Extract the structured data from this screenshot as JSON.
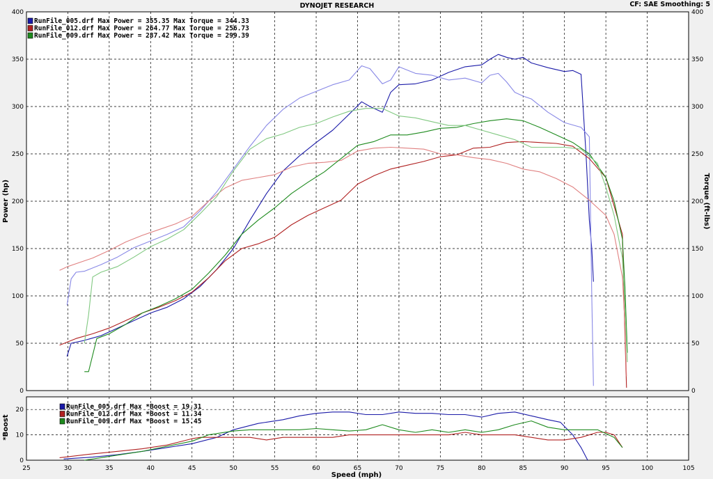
{
  "header": {
    "title": "DYNOJET RESEARCH",
    "settings": "CF: SAE  Smoothing: 5"
  },
  "chart_data": [
    {
      "type": "line",
      "title": "DYNOJET RESEARCH",
      "xlabel": "Speed (mph)",
      "ylabel": "Power (hp)",
      "y2label": "Torque (ft-lbs)",
      "xlim": [
        25,
        105
      ],
      "ylim": [
        0,
        400
      ],
      "y2lim": [
        0,
        400
      ],
      "xticks": [
        "25",
        "30",
        "35",
        "40",
        "45",
        "50",
        "55",
        "60",
        "65",
        "70",
        "75",
        "80",
        "85",
        "90",
        "95",
        "100",
        "105"
      ],
      "yticks": [
        "0",
        "50",
        "100",
        "150",
        "200",
        "250",
        "300",
        "350",
        "400"
      ],
      "grid": true,
      "legend_position": "top-left",
      "legend": [
        "RunFile_005.drf Max Power = 355.35    Max Torque = 344.33",
        "RunFile_012.drf Max Power = 264.77    Max Torque = 256.73",
        "RunFile_009.drf Max Power = 287.42    Max Torque = 299.39"
      ],
      "series": [
        {
          "name": "RunFile_005.drf",
          "measure": "power",
          "color": "#1a1aa8",
          "x": [
            29.9,
            30.4,
            32,
            34,
            36,
            38,
            40,
            42,
            44,
            46,
            48,
            50,
            52,
            54,
            56,
            58,
            60,
            62,
            64,
            65.5,
            66.5,
            68,
            69,
            70,
            72,
            74,
            76,
            78,
            80,
            81,
            82,
            83,
            84,
            85,
            86,
            88,
            90,
            91,
            92,
            92.6,
            93,
            93.3,
            93.5
          ],
          "y": [
            36,
            50,
            53,
            58,
            66,
            74,
            82,
            88,
            97,
            110,
            128,
            150,
            180,
            208,
            232,
            248,
            262,
            275,
            292,
            305,
            300,
            294,
            315,
            323,
            324,
            328,
            336,
            342,
            344,
            350,
            355,
            352,
            350,
            352,
            346,
            341,
            337,
            338,
            334,
            250,
            180,
            150,
            115
          ]
        },
        {
          "name": "RunFile_005.drf",
          "measure": "torque",
          "color": "#8888e6",
          "x": [
            29.9,
            30.4,
            31,
            32,
            34,
            36,
            38,
            40,
            42,
            44,
            46,
            48,
            50,
            52,
            54,
            56,
            58,
            60,
            62,
            64,
            65.5,
            66.5,
            68,
            69,
            70,
            72,
            74,
            76,
            78,
            80,
            81,
            82,
            83,
            84,
            85,
            86,
            88,
            90,
            92,
            93,
            93.3,
            93.5
          ],
          "y": [
            90,
            118,
            125,
            126,
            133,
            141,
            151,
            158,
            165,
            173,
            190,
            210,
            234,
            258,
            280,
            297,
            309,
            316,
            323,
            328,
            343,
            340,
            324,
            328,
            342,
            335,
            333,
            328,
            330,
            325,
            333,
            335,
            326,
            315,
            311,
            308,
            294,
            283,
            278,
            268,
            100,
            5
          ]
        },
        {
          "name": "RunFile_012.drf",
          "measure": "power",
          "color": "#b02020",
          "x": [
            29,
            31,
            33,
            35,
            37,
            39,
            41,
            43,
            45,
            47,
            49,
            51,
            53,
            55,
            57,
            59,
            61,
            63,
            65,
            67,
            69,
            71,
            73,
            75,
            77,
            79,
            81,
            83,
            85,
            87,
            89,
            91,
            93,
            95,
            96,
            97,
            97.2,
            97.5
          ],
          "y": [
            48,
            55,
            60,
            66,
            74,
            82,
            88,
            95,
            104,
            119,
            137,
            150,
            155,
            162,
            175,
            185,
            193,
            201,
            218,
            227,
            234,
            238,
            242,
            247,
            249,
            256,
            257,
            262,
            263,
            262,
            261,
            258,
            245,
            225,
            195,
            165,
            90,
            3
          ]
        },
        {
          "name": "RunFile_012.drf",
          "measure": "torque",
          "color": "#e08080",
          "x": [
            29,
            30,
            33,
            35,
            37,
            39,
            41,
            43,
            45,
            47,
            49,
            51,
            53,
            55,
            57,
            59,
            61,
            63,
            65,
            67,
            69,
            71,
            73,
            75,
            77,
            79,
            81,
            83,
            85,
            87,
            89,
            91,
            93,
            95,
            96,
            97,
            97.3,
            97.5
          ],
          "y": [
            127,
            131,
            140,
            148,
            157,
            164,
            170,
            176,
            184,
            200,
            214,
            222,
            225,
            228,
            236,
            240,
            241,
            243,
            253,
            256,
            257,
            256,
            255,
            250,
            249,
            246,
            244,
            240,
            234,
            231,
            224,
            215,
            201,
            185,
            165,
            120,
            70,
            15
          ]
        },
        {
          "name": "RunFile_009.drf",
          "measure": "power",
          "color": "#1d8a1d",
          "x": [
            32,
            32.5,
            33.5,
            35,
            37,
            39,
            41,
            43,
            45,
            47,
            49,
            51,
            53,
            55,
            57,
            59,
            61,
            63,
            65,
            67,
            69,
            71,
            73,
            75,
            77,
            79,
            81,
            83,
            85,
            87,
            89,
            91,
            93,
            95,
            96,
            97,
            97.3,
            97.6
          ],
          "y": [
            20,
            20,
            55,
            60,
            70,
            82,
            89,
            97,
            107,
            124,
            143,
            165,
            180,
            193,
            208,
            220,
            231,
            245,
            259,
            263,
            270,
            270,
            273,
            277,
            278,
            282,
            285,
            287,
            285,
            278,
            270,
            262,
            250,
            225,
            200,
            160,
            110,
            40
          ]
        },
        {
          "name": "RunFile_009.drf",
          "measure": "torque",
          "color": "#80c880",
          "x": [
            32,
            32.5,
            33,
            34,
            36,
            38,
            40,
            42,
            44,
            46,
            48,
            50,
            52,
            54,
            56,
            58,
            60,
            62,
            64,
            66,
            68,
            70,
            72,
            74,
            76,
            78,
            80,
            82,
            84,
            86,
            88,
            90,
            92,
            94,
            95,
            96,
            97,
            97.3,
            97.6
          ],
          "y": [
            50,
            80,
            120,
            125,
            131,
            141,
            152,
            160,
            170,
            187,
            205,
            232,
            255,
            266,
            271,
            278,
            282,
            289,
            295,
            298,
            298,
            290,
            288,
            284,
            280,
            280,
            275,
            270,
            265,
            257,
            257,
            257,
            255,
            240,
            215,
            185,
            140,
            90,
            30
          ]
        }
      ]
    },
    {
      "type": "line",
      "xlabel": "Speed (mph)",
      "ylabel": "*Boost",
      "xlim": [
        25,
        105
      ],
      "ylim": [
        0,
        25
      ],
      "yticks": [
        "0",
        "10",
        "20"
      ],
      "grid": true,
      "legend_position": "top-left",
      "legend": [
        "RunFile_005.drf Max *Boost = 19.31",
        "RunFile_012.drf Max *Boost = 11.34",
        "RunFile_009.drf Max *Boost = 15.45"
      ],
      "series": [
        {
          "name": "RunFile_005.drf",
          "measure": "boost",
          "color": "#1a1aa8",
          "x": [
            29.5,
            33,
            36,
            39,
            42,
            45,
            48,
            50,
            53,
            56,
            58,
            60,
            62,
            64,
            66,
            68,
            70,
            72,
            74,
            76,
            78,
            80,
            82,
            84,
            86,
            88,
            89.5,
            91,
            92,
            92.8
          ],
          "y": [
            0.5,
            1.2,
            2.2,
            3.5,
            5,
            6.5,
            9,
            12,
            14.5,
            16,
            17.5,
            18.5,
            19,
            19,
            18,
            18,
            19,
            18.5,
            18.5,
            18,
            18,
            17,
            18.5,
            19,
            17.5,
            16,
            15,
            10,
            5,
            0
          ]
        },
        {
          "name": "RunFile_012.drf",
          "measure": "boost",
          "color": "#b02020",
          "x": [
            29,
            33,
            36,
            39,
            42,
            45,
            46,
            48,
            50,
            52,
            54,
            56,
            58,
            60,
            62,
            64,
            66,
            68,
            70,
            72,
            74,
            76,
            78,
            80,
            82,
            84,
            86,
            88,
            90,
            92,
            94,
            95,
            96,
            97
          ],
          "y": [
            1,
            2.5,
            3.5,
            4.5,
            6,
            8.5,
            9,
            9,
            9,
            9,
            8,
            9,
            9,
            9,
            9,
            10,
            10,
            10,
            10,
            10,
            10,
            10,
            11,
            10,
            10,
            10,
            9,
            8,
            8,
            9,
            11,
            11,
            10,
            5
          ]
        },
        {
          "name": "RunFile_009.drf",
          "measure": "boost",
          "color": "#1d8a1d",
          "x": [
            32,
            34,
            36,
            39,
            42,
            45,
            47,
            50,
            52,
            55,
            58,
            60,
            62,
            64,
            66,
            68,
            70,
            72,
            74,
            76,
            78,
            80,
            82,
            84,
            86,
            88,
            90,
            92,
            94,
            96,
            97
          ],
          "y": [
            0,
            1,
            2,
            3.5,
            5.5,
            7.5,
            10,
            11.5,
            12,
            12,
            12,
            12.5,
            12,
            11.5,
            12,
            14,
            12,
            11,
            12,
            11,
            12,
            11,
            12,
            14,
            15.5,
            13,
            12,
            12,
            12,
            9,
            5
          ]
        }
      ]
    }
  ]
}
